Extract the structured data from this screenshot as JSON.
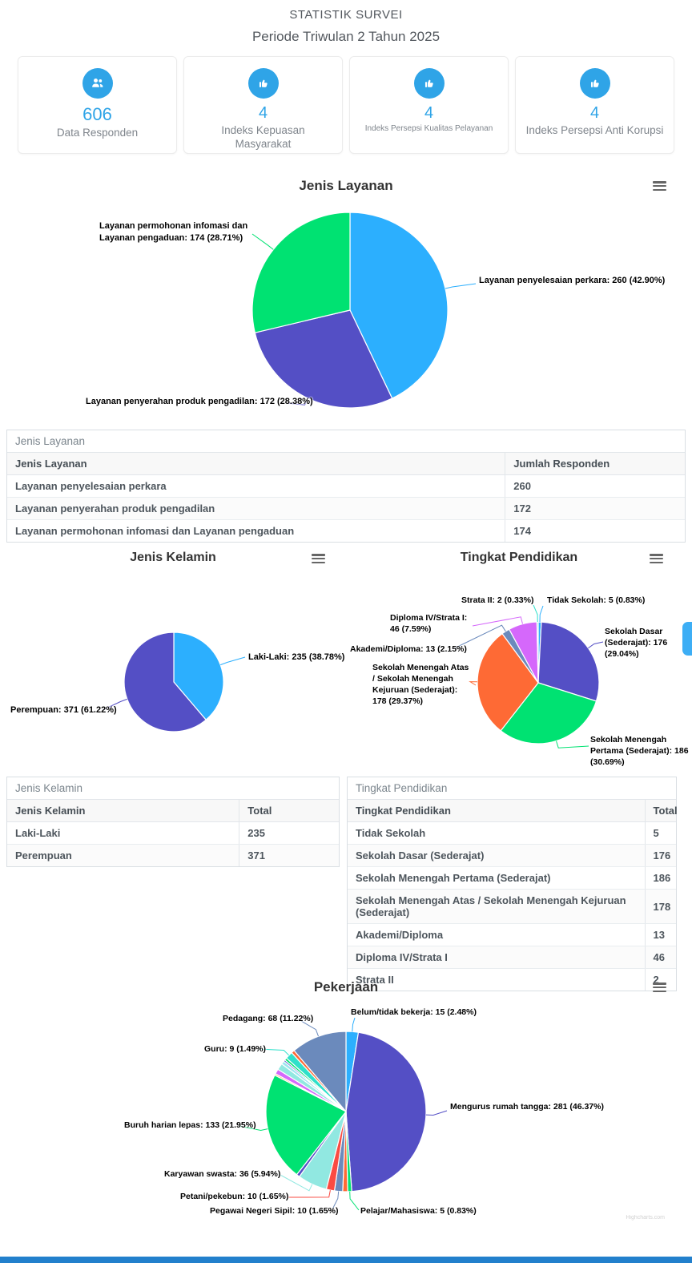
{
  "header": {
    "title": "STATISTIK SURVEI",
    "subtitle": "Periode Triwulan 2 Tahun 2025"
  },
  "stat_cards": [
    {
      "value": "606",
      "label": "Data Responden",
      "icon": "users-icon"
    },
    {
      "value": "4",
      "label": "Indeks Kepuasan Masyarakat",
      "icon": "thumbs-up-icon"
    },
    {
      "value": "4",
      "label": "Indeks Persepsi Kualitas Pelayanan",
      "icon": "thumbs-up-icon"
    },
    {
      "value": "4",
      "label": "Indeks Persepsi Anti Korupsi",
      "icon": "thumbs-up-icon"
    }
  ],
  "colors": {
    "accent": "#2fa4e7",
    "footer_bar": "#2280cc",
    "palette": [
      "#2caffe",
      "#544fc5",
      "#00e272",
      "#fe6a35",
      "#6b8abc",
      "#d568fb",
      "#2ee0ca",
      "#fa4b42",
      "#feb56a",
      "#91e8e1"
    ]
  },
  "chart_data": [
    {
      "id": "jenis_layanan",
      "type": "pie",
      "title": "Jenis Layanan",
      "total": 606,
      "segments": [
        {
          "name": "Layanan penyelesaian perkara",
          "value": 260,
          "pct": "42.90",
          "color": "#2caffe",
          "label": "Layanan penyelesaian perkara: 260 (42.90%)"
        },
        {
          "name": "Layanan penyerahan produk pengadilan",
          "value": 172,
          "pct": "28.38",
          "color": "#544fc5",
          "label": "Layanan penyerahan produk pengadilan: 172 (28.38%)"
        },
        {
          "name": "Layanan permohonan infomasi dan Layanan pengaduan",
          "value": 174,
          "pct": "28.71",
          "color": "#00e272",
          "label": "Layanan permohonan infomasi dan Layanan pengaduan: 174 (28.71%)"
        }
      ]
    },
    {
      "id": "jenis_kelamin",
      "type": "pie",
      "title": "Jenis Kelamin",
      "total": 606,
      "segments": [
        {
          "name": "Laki-Laki",
          "value": 235,
          "pct": "38.78",
          "color": "#2caffe",
          "label": "Laki-Laki: 235 (38.78%)"
        },
        {
          "name": "Perempuan",
          "value": 371,
          "pct": "61.22",
          "color": "#544fc5",
          "label": "Perempuan: 371 (61.22%)"
        }
      ]
    },
    {
      "id": "tingkat_pendidikan",
      "type": "pie",
      "title": "Tingkat Pendidikan",
      "total": 606,
      "segments": [
        {
          "name": "Tidak Sekolah",
          "value": 5,
          "pct": "0.83",
          "color": "#2caffe",
          "label": "Tidak Sekolah: 5 (0.83%)"
        },
        {
          "name": "Sekolah Dasar (Sederajat)",
          "value": 176,
          "pct": "29.04",
          "color": "#544fc5",
          "label": "Sekolah Dasar (Sederajat): 176 (29.04%)"
        },
        {
          "name": "Sekolah Menengah Pertama (Sederajat)",
          "value": 186,
          "pct": "30.69",
          "color": "#00e272",
          "label": "Sekolah Menengah Pertama (Sederajat): 186 (30.69%)"
        },
        {
          "name": "Sekolah Menengah Atas / Sekolah Menengah Kejuruan (Sederajat)",
          "value": 178,
          "pct": "29.37",
          "color": "#fe6a35",
          "label": "Sekolah Menengah Atas / Sekolah Menengah Kejuruan (Sederajat): 178 (29.37%)"
        },
        {
          "name": "Akademi/Diploma",
          "value": 13,
          "pct": "2.15",
          "color": "#6b8abc",
          "label": "Akademi/Diploma: 13 (2.15%)"
        },
        {
          "name": "Diploma IV/Strata I",
          "value": 46,
          "pct": "7.59",
          "color": "#d568fb",
          "label": "Diploma IV/Strata I: 46 (7.59%)"
        },
        {
          "name": "Strata II",
          "value": 2,
          "pct": "0.33",
          "color": "#2ee0ca",
          "label": "Strata II: 2 (0.33%)"
        }
      ]
    },
    {
      "id": "pekerjaan",
      "type": "pie",
      "title": "Pekerjaan",
      "total": 606,
      "note": "segments with null label are small unlabeled slices; values estimated from slice size",
      "segments": [
        {
          "name": "Belum/tidak bekerja",
          "value": 15,
          "pct": "2.48",
          "color": "#2caffe",
          "label": "Belum/tidak bekerja: 15 (2.48%)"
        },
        {
          "name": "Mengurus rumah tangga",
          "value": 281,
          "pct": "46.37",
          "color": "#544fc5",
          "label": "Mengurus rumah tangga: 281 (46.37%)"
        },
        {
          "name": "Pelajar/Mahasiswa",
          "value": 5,
          "pct": "0.83",
          "color": "#00e272",
          "label": "Pelajar/Mahasiswa: 5 (0.83%)"
        },
        {
          "name": null,
          "value": 6,
          "pct": null,
          "color": "#fe6a35",
          "label": null
        },
        {
          "name": "Pegawai Negeri Sipil",
          "value": 10,
          "pct": "1.65",
          "color": "#6b8abc",
          "label": "Pegawai Negeri Sipil: 10 (1.65%)"
        },
        {
          "name": "Petani/pekebun",
          "value": 10,
          "pct": "1.65",
          "color": "#fa4b42",
          "label": "Petani/pekebun: 10 (1.65%)"
        },
        {
          "name": "Karyawan swasta",
          "value": 36,
          "pct": "5.94",
          "color": "#91e8e1",
          "label": "Karyawan swasta: 36 (5.94%)"
        },
        {
          "name": null,
          "value": 4,
          "pct": null,
          "color": "#544fc5",
          "label": null
        },
        {
          "name": "Buruh harian lepas",
          "value": 133,
          "pct": "21.95",
          "color": "#00e272",
          "label": "Buruh harian lepas: 133 (21.95%)"
        },
        {
          "name": null,
          "value": 2,
          "pct": null,
          "color": "#feb56a",
          "label": null
        },
        {
          "name": null,
          "value": 6,
          "pct": null,
          "color": "#d568fb",
          "label": null
        },
        {
          "name": null,
          "value": 8,
          "pct": null,
          "color": "#91e8e1",
          "label": null
        },
        {
          "name": null,
          "value": 4,
          "pct": null,
          "color": "#9ce5ef",
          "label": null
        },
        {
          "name": null,
          "value": 2,
          "pct": null,
          "color": "#544fc5",
          "label": null
        },
        {
          "name": null,
          "value": 3,
          "pct": null,
          "color": "#00e272",
          "label": null
        },
        {
          "name": "Guru",
          "value": 9,
          "pct": "1.49",
          "color": "#2ee0ca",
          "label": "Guru: 9 (1.49%)"
        },
        {
          "name": null,
          "value": 4,
          "pct": null,
          "color": "#fe6a35",
          "label": null
        },
        {
          "name": "Pedagang",
          "value": 68,
          "pct": "11.22",
          "color": "#6b8abc",
          "label": "Pedagang: 68 (11.22%)"
        }
      ]
    }
  ],
  "tables": [
    {
      "title": "Jenis Layanan",
      "columns": [
        "Jenis Layanan",
        "Jumlah Responden"
      ],
      "rows": [
        [
          "Layanan penyelesaian perkara",
          "260"
        ],
        [
          "Layanan penyerahan produk pengadilan",
          "172"
        ],
        [
          "Layanan permohonan infomasi dan Layanan pengaduan",
          "174"
        ]
      ]
    },
    {
      "title": "Jenis Kelamin",
      "columns": [
        "Jenis Kelamin",
        "Total"
      ],
      "rows": [
        [
          "Laki-Laki",
          "235"
        ],
        [
          "Perempuan",
          "371"
        ]
      ]
    },
    {
      "title": "Tingkat Pendidikan",
      "columns": [
        "Tingkat Pendidikan",
        "Total"
      ],
      "rows": [
        [
          "Tidak Sekolah",
          "5"
        ],
        [
          "Sekolah Dasar (Sederajat)",
          "176"
        ],
        [
          "Sekolah Menengah Pertama (Sederajat)",
          "186"
        ],
        [
          "Sekolah Menengah Atas / Sekolah Menengah Kejuruan (Sederajat)",
          "178"
        ],
        [
          "Akademi/Diploma",
          "13"
        ],
        [
          "Diploma IV/Strata I",
          "46"
        ],
        [
          "Strata II",
          "2"
        ]
      ]
    }
  ],
  "credits": "Highcharts.com"
}
